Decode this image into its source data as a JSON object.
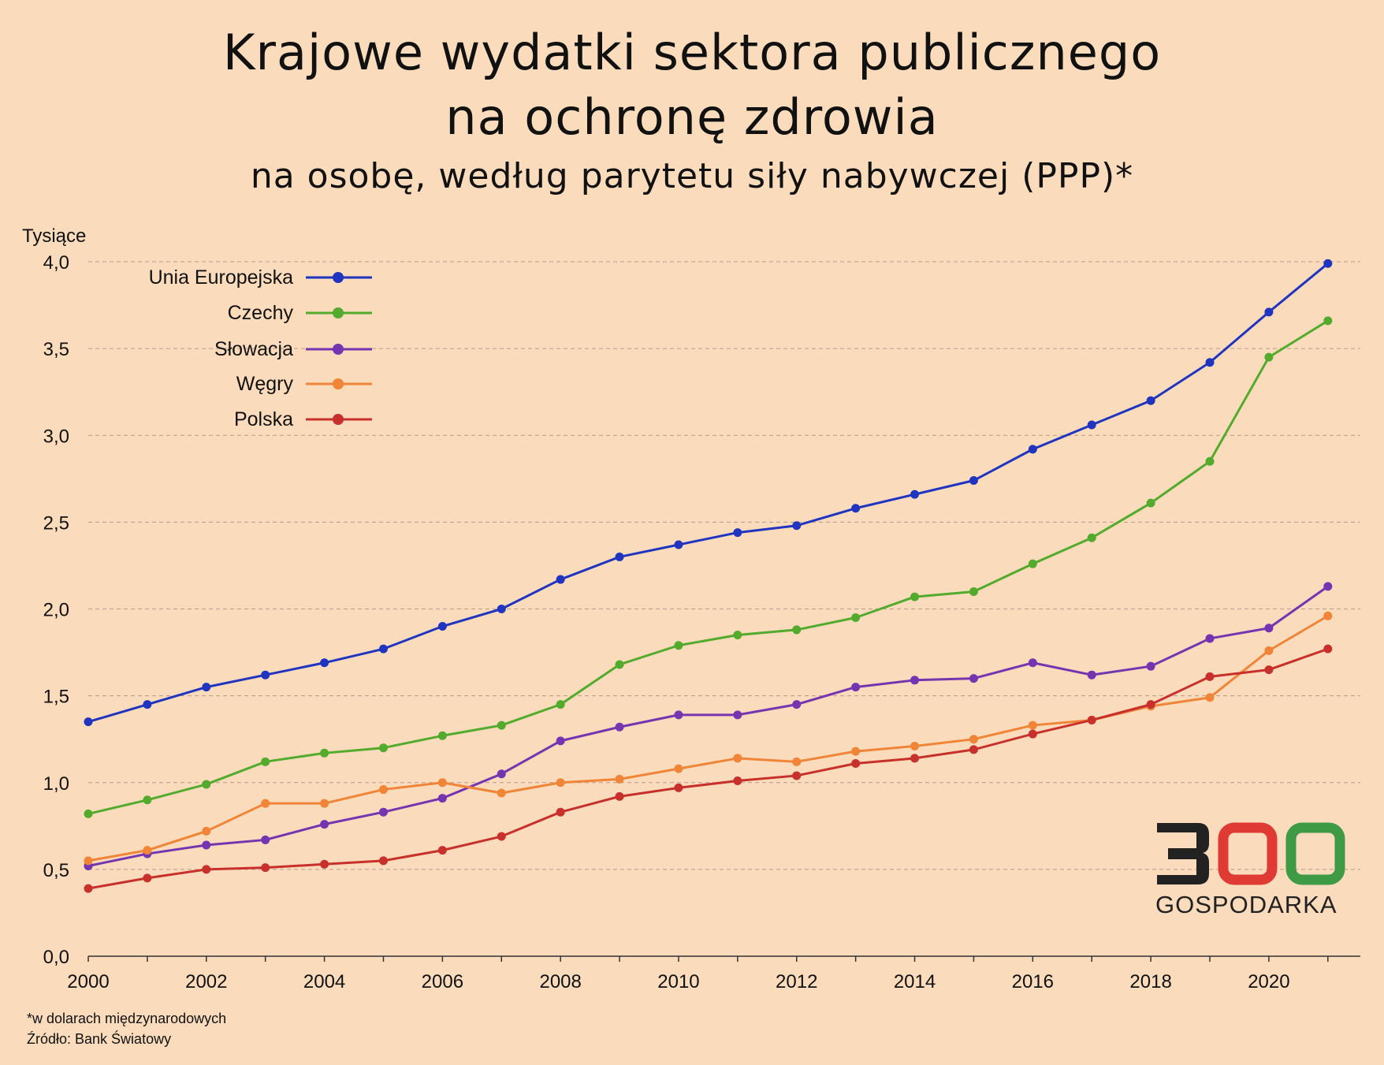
{
  "header": {
    "title_line1": "Krajowe wydatki sektora publicznego",
    "title_line2": "na ochronę zdrowia",
    "subtitle": "na osobę, według parytetu siły nabywczej (PPP)*"
  },
  "footer": {
    "note": "*w dolarach międzynarodowych",
    "source": "Źródło: Bank Światowy"
  },
  "logo": {
    "number": "300",
    "text": "GOSPODARKA",
    "colors": {
      "three": "#222222",
      "first_zero": "#E03A34",
      "second_zero": "#3E9A45"
    }
  },
  "chart_data": {
    "type": "line",
    "title": "Krajowe wydatki sektora publicznego na ochronę zdrowia",
    "subtitle": "na osobę, według parytetu siły nabywczej (PPP)*",
    "xlabel": "",
    "ylabel": "Tysiące",
    "x": [
      2000,
      2001,
      2002,
      2003,
      2004,
      2005,
      2006,
      2007,
      2008,
      2009,
      2010,
      2011,
      2012,
      2013,
      2014,
      2015,
      2016,
      2017,
      2018,
      2019,
      2020,
      2021
    ],
    "x_ticks": [
      "2000",
      "2002",
      "2004",
      "2006",
      "2008",
      "2010",
      "2012",
      "2014",
      "2016",
      "2018",
      "2020"
    ],
    "x_tick_values": [
      2000,
      2002,
      2004,
      2006,
      2008,
      2010,
      2012,
      2014,
      2016,
      2018,
      2020
    ],
    "xlim": [
      2000,
      2021.55
    ],
    "ylim": [
      0,
      4.0
    ],
    "y_ticks": [
      "0,0",
      "0,5",
      "1,0",
      "1,5",
      "2,0",
      "2,5",
      "3,0",
      "3,5",
      "4,0"
    ],
    "y_tick_values": [
      0,
      0.5,
      1.0,
      1.5,
      2.0,
      2.5,
      3.0,
      3.5,
      4.0
    ],
    "grid": "horizontal dashed",
    "legend_position": "top-left",
    "series": [
      {
        "name": "Unia Europejska",
        "color": "#1F35C0",
        "values": [
          1.35,
          1.45,
          1.55,
          1.62,
          1.69,
          1.77,
          1.9,
          2.0,
          2.17,
          2.3,
          2.37,
          2.44,
          2.48,
          2.58,
          2.66,
          2.74,
          2.92,
          3.06,
          3.2,
          3.42,
          3.71,
          3.99
        ]
      },
      {
        "name": "Czechy",
        "color": "#52AB2C",
        "values": [
          0.82,
          0.9,
          0.99,
          1.12,
          1.17,
          1.2,
          1.27,
          1.33,
          1.45,
          1.68,
          1.79,
          1.85,
          1.88,
          1.95,
          2.07,
          2.1,
          2.26,
          2.41,
          2.61,
          2.85,
          3.45,
          3.66
        ]
      },
      {
        "name": "Słowacja",
        "color": "#7535B0",
        "values": [
          0.52,
          0.59,
          0.64,
          0.67,
          0.76,
          0.83,
          0.91,
          1.05,
          1.24,
          1.32,
          1.39,
          1.39,
          1.45,
          1.55,
          1.59,
          1.6,
          1.69,
          1.62,
          1.67,
          1.83,
          1.89,
          2.13
        ]
      },
      {
        "name": "Węgry",
        "color": "#F08538",
        "values": [
          0.55,
          0.61,
          0.72,
          0.88,
          0.88,
          0.96,
          1.0,
          0.94,
          1.0,
          1.02,
          1.08,
          1.14,
          1.12,
          1.18,
          1.21,
          1.25,
          1.33,
          1.36,
          1.44,
          1.49,
          1.76,
          1.96
        ]
      },
      {
        "name": "Polska",
        "color": "#C8302C",
        "values": [
          0.39,
          0.45,
          0.5,
          0.51,
          0.53,
          0.55,
          0.61,
          0.69,
          0.83,
          0.92,
          0.97,
          1.01,
          1.04,
          1.11,
          1.14,
          1.19,
          1.28,
          1.36,
          1.45,
          1.61,
          1.65,
          1.77
        ]
      }
    ]
  }
}
